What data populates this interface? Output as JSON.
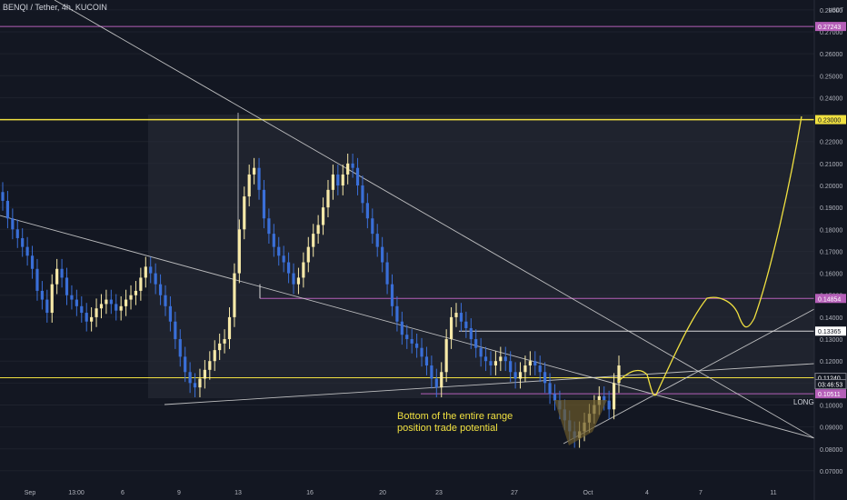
{
  "title": "BENQI / Tether, 4h, KUCOIN",
  "colors": {
    "background": "#131722",
    "up": "#f7e9a8",
    "down": "#3a6fd8",
    "yellow": "#f0e040",
    "purple": "#b55fb8",
    "white": "#d8d8d8",
    "axis_text": "#b2b5be",
    "range_box": "#2a2e39"
  },
  "chart_data": {
    "type": "candlestick",
    "y_axis": {
      "unit_label": "USDT",
      "ticks": [
        "0.28000",
        "0.27000",
        "0.26000",
        "0.25000",
        "0.24000",
        "0.23000",
        "0.22000",
        "0.21000",
        "0.20000",
        "0.19000",
        "0.18000",
        "0.17000",
        "0.16000",
        "0.15000",
        "0.14000",
        "0.13000",
        "0.12000",
        "0.11000",
        "0.10000",
        "0.09000",
        "0.08000",
        "0.07000"
      ],
      "ylim": [
        0.065,
        0.282
      ]
    },
    "x_axis": {
      "ticks": [
        "Sep",
        "13:00",
        "6",
        "9",
        "13",
        "16",
        "20",
        "23",
        "27",
        "Oct",
        "4",
        "7",
        "11"
      ]
    },
    "candles_close_approx": [
      0.193,
      0.185,
      0.18,
      0.176,
      0.172,
      0.168,
      0.162,
      0.152,
      0.148,
      0.142,
      0.155,
      0.162,
      0.158,
      0.15,
      0.148,
      0.145,
      0.142,
      0.138,
      0.14,
      0.144,
      0.146,
      0.148,
      0.146,
      0.143,
      0.145,
      0.148,
      0.15,
      0.152,
      0.158,
      0.163,
      0.16,
      0.155,
      0.15,
      0.145,
      0.138,
      0.13,
      0.122,
      0.115,
      0.11,
      0.108,
      0.112,
      0.116,
      0.12,
      0.125,
      0.128,
      0.13,
      0.14,
      0.16,
      0.18,
      0.195,
      0.205,
      0.208,
      0.198,
      0.185,
      0.178,
      0.172,
      0.168,
      0.165,
      0.16,
      0.155,
      0.158,
      0.165,
      0.172,
      0.178,
      0.182,
      0.19,
      0.198,
      0.205,
      0.2,
      0.205,
      0.21,
      0.208,
      0.2,
      0.192,
      0.185,
      0.178,
      0.172,
      0.165,
      0.155,
      0.145,
      0.138,
      0.132,
      0.13,
      0.128,
      0.126,
      0.122,
      0.118,
      0.112,
      0.108,
      0.115,
      0.13,
      0.14,
      0.142,
      0.138,
      0.135,
      0.13,
      0.126,
      0.122,
      0.12,
      0.118,
      0.12,
      0.122,
      0.12,
      0.115,
      0.112,
      0.115,
      0.118,
      0.12,
      0.118,
      0.115,
      0.11,
      0.105,
      0.102,
      0.098,
      0.093,
      0.088,
      0.085,
      0.088,
      0.092,
      0.096,
      0.1,
      0.104,
      0.102,
      0.098,
      0.11,
      0.118
    ],
    "price_labels": [
      {
        "text": "0.27243",
        "value": 0.27243,
        "kind": "purple"
      },
      {
        "text": "0.23000",
        "value": 0.23,
        "kind": "yellow"
      },
      {
        "text": "0.14854",
        "value": 0.14854,
        "kind": "purple"
      },
      {
        "text": "0.13365",
        "value": 0.13365,
        "kind": "white"
      },
      {
        "text": "0.11240",
        "value": 0.1124,
        "kind": "dark"
      },
      {
        "text": "03:46:53",
        "value": 0.1095,
        "kind": "dark"
      },
      {
        "text": "0.10511",
        "value": 0.10511,
        "kind": "purple"
      }
    ],
    "horizontal_lines": [
      {
        "value": 0.27243,
        "color": "purple"
      },
      {
        "value": 0.23,
        "color": "yellow"
      },
      {
        "value": 0.14854,
        "color": "purple"
      },
      {
        "value": 0.13365,
        "color": "white"
      },
      {
        "value": 0.1124,
        "color": "yellow"
      },
      {
        "value": 0.10511,
        "color": "purple"
      }
    ],
    "annotations": [
      {
        "text": "Bottom of the entire range"
      },
      {
        "text": "position trade potential"
      },
      {
        "text": "LONG"
      }
    ]
  }
}
